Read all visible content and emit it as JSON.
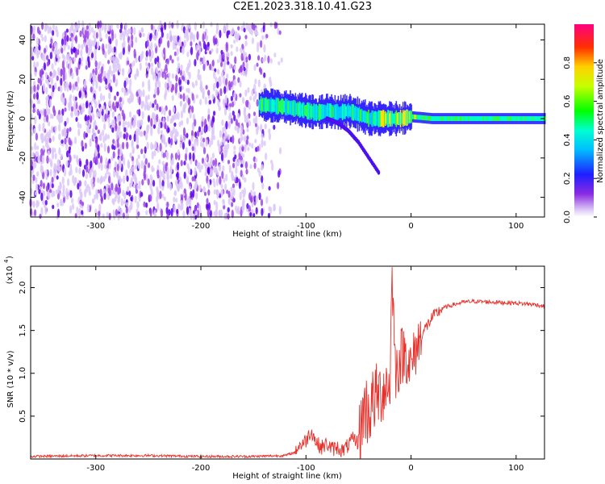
{
  "title": "C2E1.2023.318.10.41.G23",
  "colors": {
    "snr_line": "#e8302a",
    "axis": "#000000",
    "background": "#ffffff"
  },
  "chart_data": [
    {
      "type": "heatmap",
      "xlabel": "Height of straight line (km)",
      "ylabel": "Frequency (Hz)",
      "xlim": [
        -362,
        127
      ],
      "ylim": [
        -50,
        48
      ],
      "xticks": [
        -300,
        -200,
        -100,
        0,
        100
      ],
      "yticks": [
        -40,
        -20,
        0,
        20,
        40
      ],
      "colorbar": {
        "label": "Normalized spectral amplitude",
        "range": [
          0.0,
          1.0
        ],
        "ticks": [
          "0.0",
          "0.2",
          "0.4",
          "0.6",
          "0.8"
        ],
        "colormap": "rainbow (white/violet → blue → cyan → green → yellow → red → magenta)"
      },
      "description_series": [
        {
          "name": "noisy broadband region",
          "x_range": [
            -362,
            -125
          ],
          "freq_range": [
            -50,
            48
          ]
        },
        {
          "name": "central tone",
          "x": [
            -140,
            -120,
            -100,
            -90,
            -80,
            -70,
            -60,
            -50,
            -40,
            -30,
            -20,
            -10,
            0,
            20,
            60,
            100,
            127
          ],
          "freq": [
            7,
            6,
            4,
            3,
            4,
            3,
            4,
            2,
            0,
            0,
            0,
            0,
            1,
            0,
            0,
            0,
            0
          ]
        },
        {
          "name": "diverging branch",
          "x": [
            -80,
            -70,
            -60,
            -50,
            -40,
            -30
          ],
          "freq": [
            0,
            -2,
            -6,
            -12,
            -20,
            -28
          ]
        }
      ]
    },
    {
      "type": "line",
      "xlabel": "Height of straight line (km)",
      "ylabel": "SNR (10 * v/v)",
      "yscale_label": "(x10",
      "yscale_exp": "4",
      "xlim": [
        -362,
        127
      ],
      "ylim": [
        0,
        2.25
      ],
      "xticks": [
        -300,
        -200,
        -100,
        0,
        100
      ],
      "yticks": [
        0.5,
        1.0,
        1.5,
        2.0
      ],
      "yticklabels": [
        "0.5",
        "1.0",
        "1.5",
        "2.0"
      ],
      "series": [
        {
          "x": [
            -362,
            -300,
            -250,
            -200,
            -150,
            -120,
            -110,
            -100,
            -95,
            -90,
            -85,
            -80,
            -75,
            -70,
            -65,
            -60,
            -55,
            -50,
            -45,
            -40,
            -35,
            -30,
            -25,
            -20,
            -18,
            -15,
            -12,
            -10,
            -5,
            0,
            5,
            10,
            15,
            20,
            30,
            40,
            50,
            60,
            80,
            100,
            120,
            127
          ],
          "y": [
            0.03,
            0.04,
            0.04,
            0.03,
            0.03,
            0.04,
            0.08,
            0.18,
            0.3,
            0.15,
            0.1,
            0.14,
            0.08,
            0.1,
            0.06,
            0.12,
            0.2,
            0.15,
            0.6,
            0.55,
            0.7,
            0.75,
            0.85,
            0.9,
            2.2,
            1.05,
            1.1,
            1.2,
            1.25,
            1.05,
            1.3,
            1.45,
            1.55,
            1.65,
            1.76,
            1.8,
            1.83,
            1.84,
            1.83,
            1.82,
            1.8,
            1.78
          ]
        }
      ]
    }
  ]
}
